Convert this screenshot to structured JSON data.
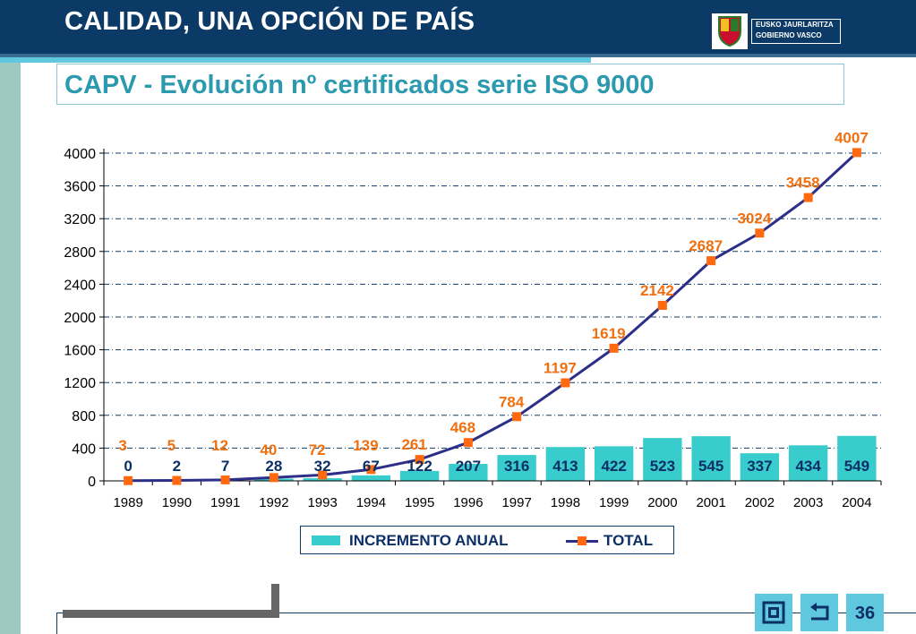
{
  "header": {
    "title": "CALIDAD, UNA OPCIÓN DE PAÍS",
    "logo_line1": "EUSKO JAURLARITZA",
    "logo_line2": "GOBIERNO VASCO"
  },
  "subtitle": "CAPV - Evolución nº certificados serie ISO 9000",
  "legend": {
    "bar_label": "INCREMENTO ANUAL",
    "line_label": "TOTAL"
  },
  "footer": {
    "page_number": "36"
  },
  "colors": {
    "header_bg": "#0c3a66",
    "bar": "#39cccc",
    "line": "#2d2e87",
    "marker": "#ff6a10",
    "total_label": "#f07010",
    "bar_label": "#0c2f66"
  },
  "icons": [
    "shield-logo-icon",
    "end-show-icon",
    "return-arrow-icon"
  ],
  "chart_data": {
    "type": "bar",
    "categories": [
      "1989",
      "1990",
      "1991",
      "1992",
      "1993",
      "1994",
      "1995",
      "1996",
      "1997",
      "1998",
      "1999",
      "2000",
      "2001",
      "2002",
      "2003",
      "2004"
    ],
    "series": [
      {
        "name": "INCREMENTO ANUAL",
        "type": "bar",
        "values": [
          0,
          2,
          7,
          28,
          32,
          67,
          122,
          207,
          316,
          413,
          422,
          523,
          545,
          337,
          434,
          549
        ]
      },
      {
        "name": "TOTAL",
        "type": "line",
        "values": [
          3,
          5,
          12,
          40,
          72,
          139,
          261,
          468,
          784,
          1197,
          1619,
          2142,
          2687,
          3024,
          3458,
          4007
        ]
      }
    ],
    "yticks": [
      0,
      400,
      800,
      1200,
      1600,
      2000,
      2400,
      2800,
      3200,
      3600,
      4000
    ],
    "ylim": [
      0,
      4000
    ],
    "grid": true,
    "legend_position": "bottom"
  }
}
